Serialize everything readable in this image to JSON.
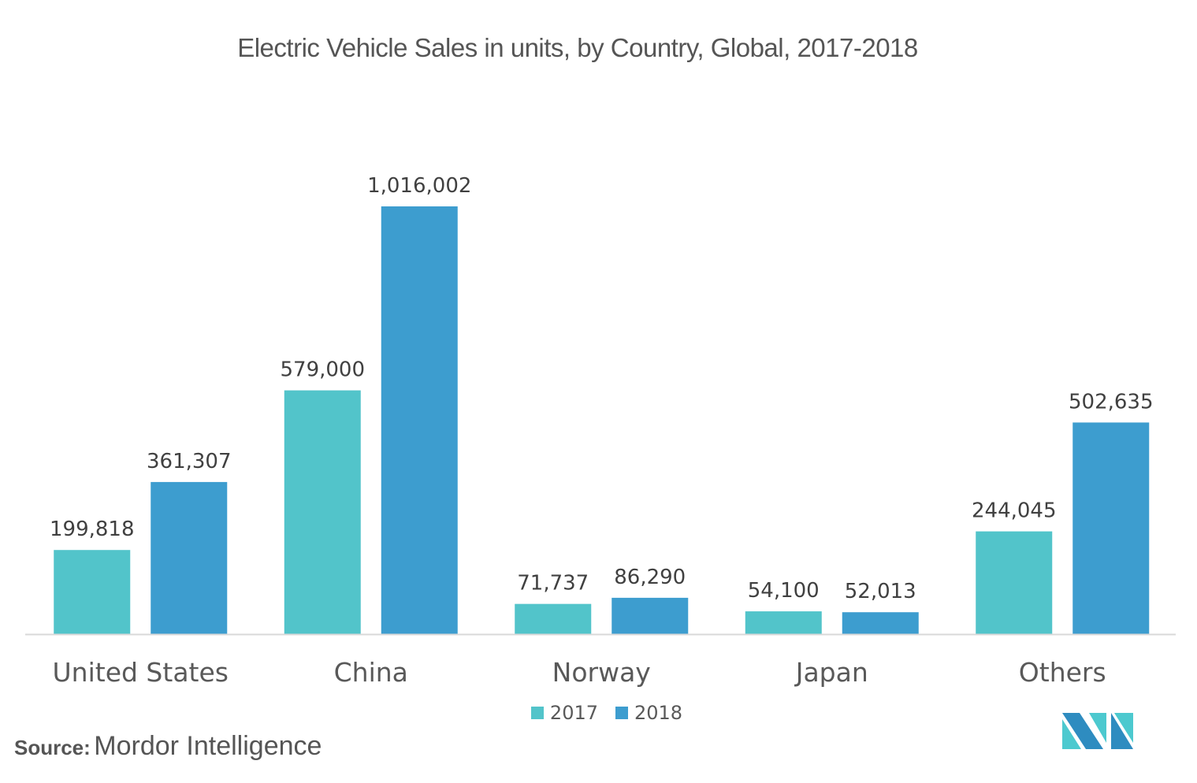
{
  "chart_data": {
    "type": "bar",
    "title": "Electric Vehicle Sales in units, by Country, Global, 2017-2018",
    "xlabel": "",
    "ylabel": "",
    "categories": [
      "United States",
      "China",
      "Norway",
      "Japan",
      "Others"
    ],
    "series": [
      {
        "name": "2017",
        "color": "#52C4CA",
        "values": [
          199818,
          579000,
          71737,
          54100,
          244045
        ],
        "labels": [
          "199,818",
          "579,000",
          "71,737",
          "54,100",
          "244,045"
        ]
      },
      {
        "name": "2018",
        "color": "#3D9DCF",
        "values": [
          361307,
          1016002,
          86290,
          52013,
          502635
        ],
        "labels": [
          "361,307",
          "1,016,002",
          "86,290",
          "52,013",
          "502,635"
        ]
      }
    ],
    "ylim": [
      0,
      1016002
    ],
    "grid": false,
    "y_axis_visible": false,
    "legend_position": "bottom-center"
  },
  "source": {
    "label": "Source:",
    "value": "Mordor Intelligence"
  },
  "logo": {
    "name": "Mordor Intelligence logo",
    "colors": [
      "#2E8CC0",
      "#4CC9CF"
    ]
  }
}
